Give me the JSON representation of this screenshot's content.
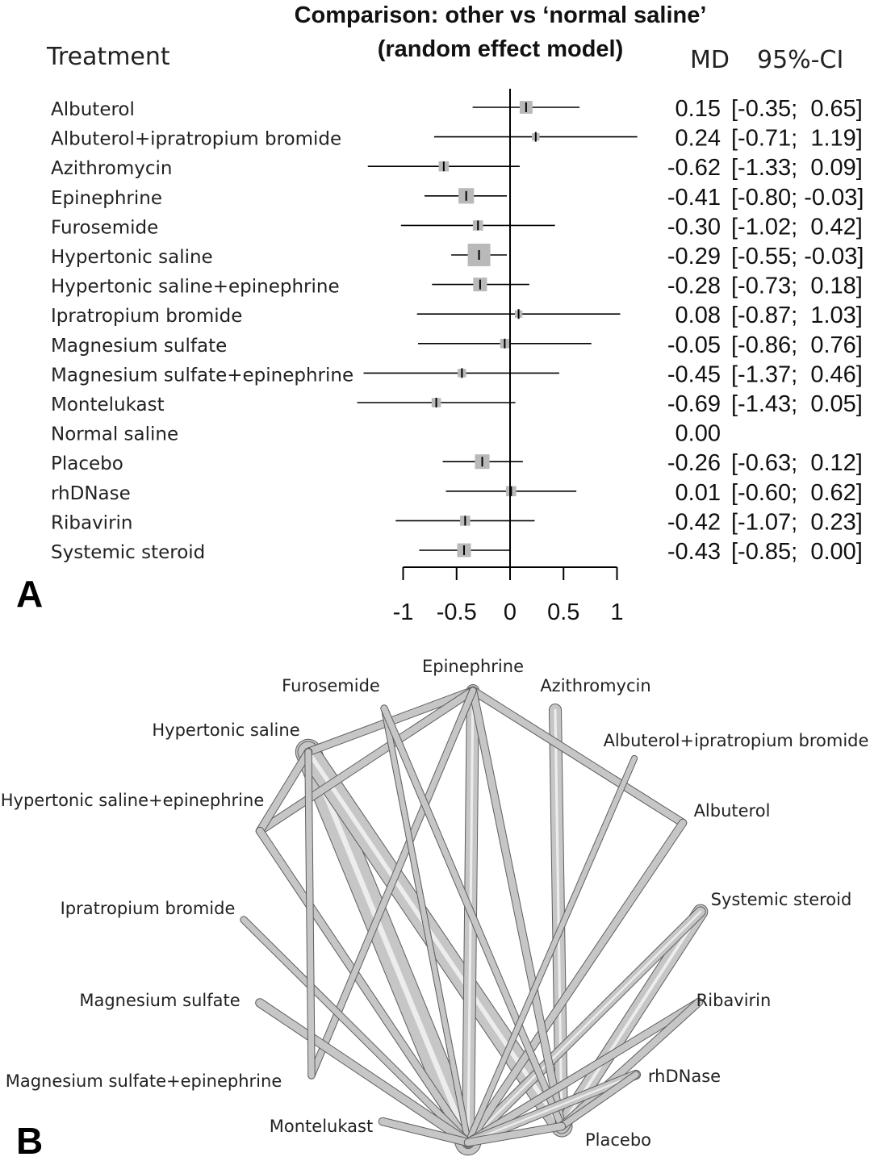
{
  "panel_a_letter": "A",
  "panel_b_letter": "B",
  "chart_data": [
    {
      "type": "forest",
      "title": "Comparison: other vs ‘normal saline’",
      "subtitle": "(random effect model)",
      "col_treatment": "Treatment",
      "col_md": "MD",
      "col_ci": "95%-CI",
      "xlim": [
        -1,
        1
      ],
      "xticks": [
        "-1",
        "-0.5",
        "0",
        "0.5",
        "1"
      ],
      "rows": [
        {
          "name": "Albuterol",
          "md": 0.15,
          "lo": -0.35,
          "hi": 0.65,
          "weight": 0.45,
          "md_text": "0.15",
          "ci_text": "[-0.35;  0.65]"
        },
        {
          "name": "Albuterol+ipratropium bromide",
          "md": 0.24,
          "lo": -0.71,
          "hi": 1.19,
          "weight": 0.15,
          "md_text": "0.24",
          "ci_text": "[-0.71;  1.19]"
        },
        {
          "name": "Azithromycin",
          "md": -0.62,
          "lo": -1.33,
          "hi": 0.09,
          "weight": 0.3,
          "md_text": "-0.62",
          "ci_text": "[-1.33;  0.09]"
        },
        {
          "name": "Epinephrine",
          "md": -0.41,
          "lo": -0.8,
          "hi": -0.03,
          "weight": 0.6,
          "md_text": "-0.41",
          "ci_text": "[-0.80; -0.03]"
        },
        {
          "name": "Furosemide",
          "md": -0.3,
          "lo": -1.02,
          "hi": 0.42,
          "weight": 0.3,
          "md_text": "-0.30",
          "ci_text": "[-1.02;  0.42]"
        },
        {
          "name": "Hypertonic saline",
          "md": -0.29,
          "lo": -0.55,
          "hi": -0.03,
          "weight": 1.0,
          "md_text": "-0.29",
          "ci_text": "[-0.55; -0.03]"
        },
        {
          "name": "Hypertonic saline+epinephrine",
          "md": -0.28,
          "lo": -0.73,
          "hi": 0.18,
          "weight": 0.5,
          "md_text": "-0.28",
          "ci_text": "[-0.73;  0.18]"
        },
        {
          "name": "Ipratropium bromide",
          "md": 0.08,
          "lo": -0.87,
          "hi": 1.03,
          "weight": 0.15,
          "md_text": "0.08",
          "ci_text": "[-0.87;  1.03]"
        },
        {
          "name": "Magnesium sulfate",
          "md": -0.05,
          "lo": -0.86,
          "hi": 0.76,
          "weight": 0.25,
          "md_text": "-0.05",
          "ci_text": "[-0.86;  0.76]"
        },
        {
          "name": "Magnesium sulfate+epinephrine",
          "md": -0.45,
          "lo": -1.37,
          "hi": 0.46,
          "weight": 0.2,
          "md_text": "-0.45",
          "ci_text": "[-1.37;  0.46]"
        },
        {
          "name": "Montelukast",
          "md": -0.69,
          "lo": -1.43,
          "hi": 0.05,
          "weight": 0.25,
          "md_text": "-0.69",
          "ci_text": "[-1.43;  0.05]"
        },
        {
          "name": "Normal saline",
          "md": 0.0,
          "lo": null,
          "hi": null,
          "weight": 0,
          "md_text": "0.00",
          "ci_text": ""
        },
        {
          "name": "Placebo",
          "md": -0.26,
          "lo": -0.63,
          "hi": 0.12,
          "weight": 0.55,
          "md_text": "-0.26",
          "ci_text": "[-0.63;  0.12]"
        },
        {
          "name": "rhDNase",
          "md": 0.01,
          "lo": -0.6,
          "hi": 0.62,
          "weight": 0.3,
          "md_text": "0.01",
          "ci_text": "[-0.60;  0.62]"
        },
        {
          "name": "Ribavirin",
          "md": -0.42,
          "lo": -1.07,
          "hi": 0.23,
          "weight": 0.3,
          "md_text": "-0.42",
          "ci_text": "[-1.07;  0.23]"
        },
        {
          "name": "Systemic steroid",
          "md": -0.43,
          "lo": -0.85,
          "hi": 0.0,
          "weight": 0.5,
          "md_text": "-0.43",
          "ci_text": "[-0.85;  0.00]"
        }
      ]
    },
    {
      "type": "network",
      "nodes": [
        {
          "id": "epi",
          "label": "Epinephrine"
        },
        {
          "id": "furo",
          "label": "Furosemide"
        },
        {
          "id": "azi",
          "label": "Azithromycin"
        },
        {
          "id": "hs",
          "label": "Hypertonic saline"
        },
        {
          "id": "albipr",
          "label": "Albuterol+ipratropium bromide"
        },
        {
          "id": "hsepi",
          "label": "Hypertonic saline+epinephrine"
        },
        {
          "id": "alb",
          "label": "Albuterol"
        },
        {
          "id": "ipr",
          "label": "Ipratropium bromide"
        },
        {
          "id": "ster",
          "label": "Systemic steroid"
        },
        {
          "id": "mag",
          "label": "Magnesium sulfate"
        },
        {
          "id": "riba",
          "label": "Ribavirin"
        },
        {
          "id": "magepi",
          "label": "Magnesium sulfate+epinephrine"
        },
        {
          "id": "rhd",
          "label": "rhDNase"
        },
        {
          "id": "monte",
          "label": "Montelukast"
        },
        {
          "id": "plac",
          "label": "Placebo"
        },
        {
          "id": "ns",
          "label": ""
        }
      ],
      "edges": [
        {
          "a": "hs",
          "b": "ns",
          "w": 5
        },
        {
          "a": "hs",
          "b": "plac",
          "w": 4
        },
        {
          "a": "epi",
          "b": "ns",
          "w": 2
        },
        {
          "a": "azi",
          "b": "plac",
          "w": 2
        },
        {
          "a": "ster",
          "b": "plac",
          "w": 2.5
        },
        {
          "a": "ster",
          "b": "ns",
          "w": 1.5
        },
        {
          "a": "hs",
          "b": "epi",
          "w": 1
        },
        {
          "a": "hsepi",
          "b": "epi",
          "w": 1
        },
        {
          "a": "hsepi",
          "b": "hs",
          "w": 1
        },
        {
          "a": "hsepi",
          "b": "ns",
          "w": 1
        },
        {
          "a": "epi",
          "b": "alb",
          "w": 1
        },
        {
          "a": "alb",
          "b": "ns",
          "w": 1
        },
        {
          "a": "epi",
          "b": "plac",
          "w": 1
        },
        {
          "a": "epi",
          "b": "magepi",
          "w": 0.8
        },
        {
          "a": "furo",
          "b": "ns",
          "w": 0.6,
          "dashed": true
        },
        {
          "a": "furo",
          "b": "plac",
          "w": 0.8
        },
        {
          "a": "albipr",
          "b": "ns",
          "w": 0.6
        },
        {
          "a": "ipr",
          "b": "ns",
          "w": 0.8
        },
        {
          "a": "mag",
          "b": "ns",
          "w": 1.2
        },
        {
          "a": "riba",
          "b": "ns",
          "w": 1
        },
        {
          "a": "riba",
          "b": "plac",
          "w": 1
        },
        {
          "a": "rhd",
          "b": "ns",
          "w": 1.3
        },
        {
          "a": "rhd",
          "b": "plac",
          "w": 0.8
        },
        {
          "a": "monte",
          "b": "ns",
          "w": 1
        },
        {
          "a": "hs",
          "b": "magepi",
          "w": 0.8
        },
        {
          "a": "ns",
          "b": "plac",
          "w": 1
        }
      ]
    }
  ]
}
